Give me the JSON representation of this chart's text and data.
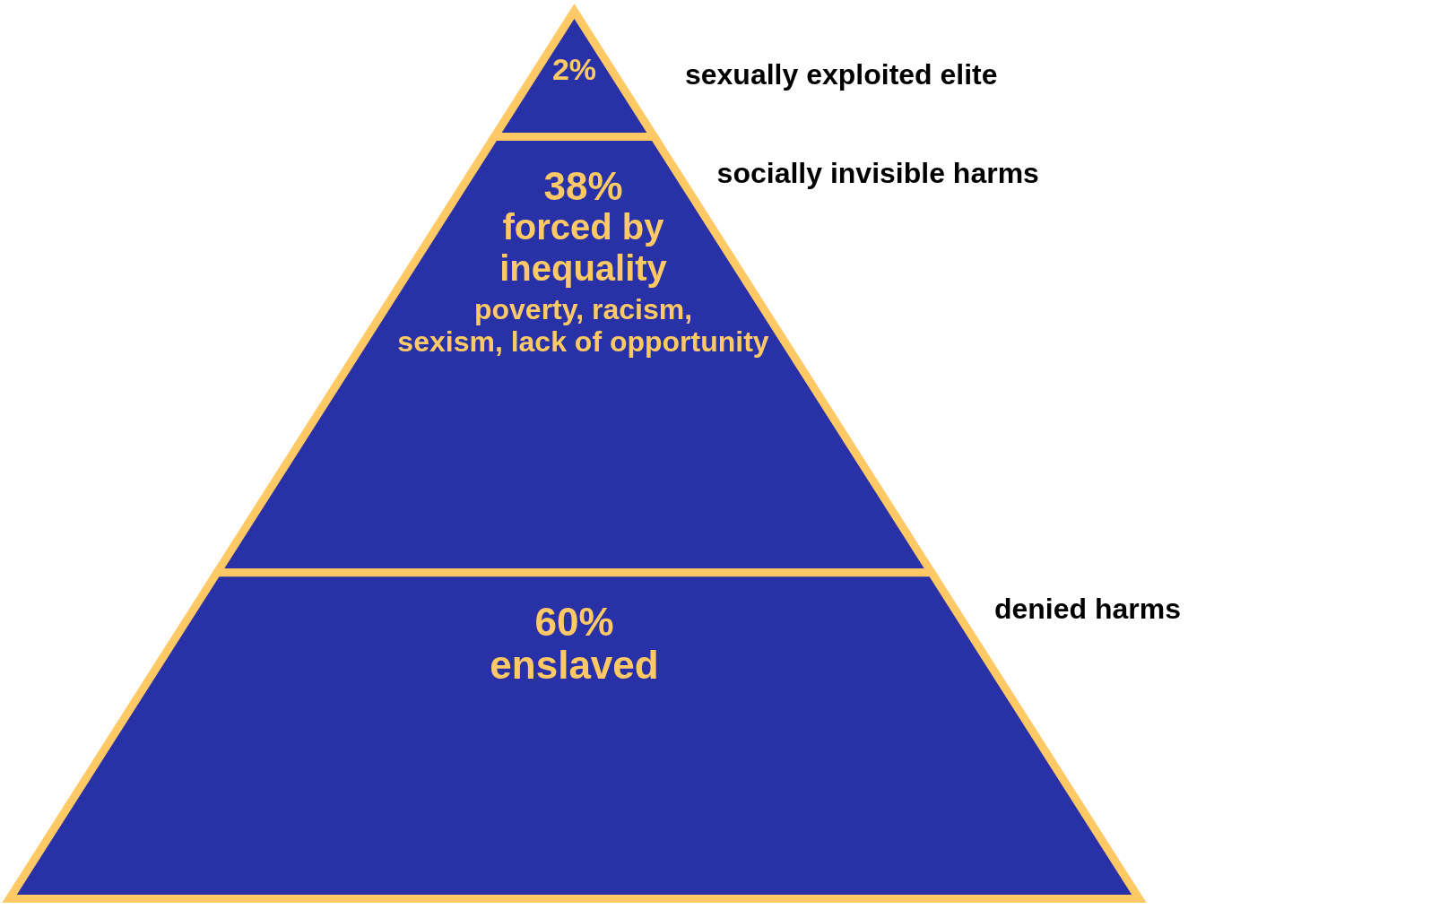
{
  "chart_data": {
    "type": "other",
    "categories": [
      "sexually exploited elite",
      "socially invisible harms",
      "denied harms"
    ],
    "values": [
      2,
      38,
      60
    ],
    "value_labels": [
      "2%",
      "38%",
      "60%"
    ],
    "colors": [
      "#2832a6",
      "#2832a6",
      "#2832a6"
    ],
    "annotations": [
      "forced by\ninequality",
      "poverty, racism,\nsexism, lack of opportunity",
      "enslaved"
    ]
  }
}
